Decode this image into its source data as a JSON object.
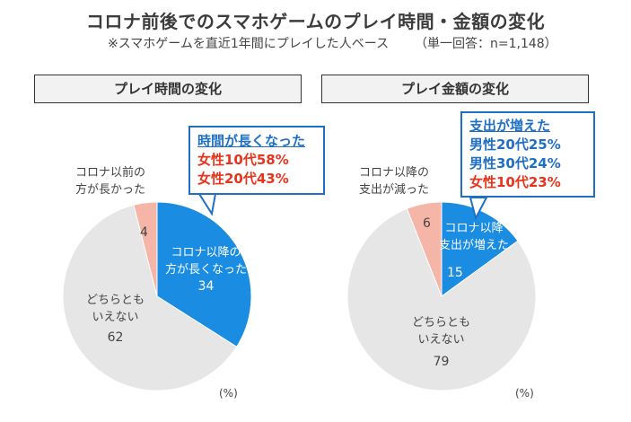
{
  "header": {
    "title": "コロナ前後でのスマホゲームのプレイ時間・金額の変化",
    "subtitle": "※スマホゲームを直近1年間にプレイした人ベース",
    "note": "（単一回答：n=1,148）"
  },
  "colors": {
    "increase": "#1a8ce2",
    "decrease": "#f5b5a7",
    "neutral": "#e6e6e6",
    "callout_blue": "#1f6fc5",
    "callout_red": "#e8341c"
  },
  "chart_data": [
    {
      "type": "pie",
      "title": "プレイ時間の変化",
      "slices": [
        {
          "label": "コロナ以降の方が長くなった",
          "value": 34
        },
        {
          "label": "どちらともいえない",
          "value": 62
        },
        {
          "label": "コロナ以前の方が長かった",
          "value": 4
        }
      ],
      "label_lines": {
        "increase": [
          "コロナ以降の",
          "方が長くなった"
        ],
        "neutral": [
          "どちらとも",
          "いえない"
        ],
        "decrease": [
          "コロナ以前の",
          "方が長かった"
        ]
      },
      "callout": {
        "heading": "時間が長くなった",
        "items": [
          {
            "text": "女性10代58%",
            "color": "red"
          },
          {
            "text": "女性20代43%",
            "color": "red"
          }
        ]
      },
      "unit": "(%)"
    },
    {
      "type": "pie",
      "title": "プレイ金額の変化",
      "slices": [
        {
          "label": "コロナ以降支出が増えた",
          "value": 15
        },
        {
          "label": "どちらともいえない",
          "value": 79
        },
        {
          "label": "コロナ以降支出が減った",
          "value": 6
        }
      ],
      "label_lines": {
        "increase": [
          "コロナ以降",
          "支出が増えた"
        ],
        "neutral": [
          "どちらとも",
          "いえない"
        ],
        "decrease": [
          "コロナ以降の",
          "支出が減った"
        ]
      },
      "callout": {
        "heading": "支出が増えた",
        "items": [
          {
            "text": "男性20代25%",
            "color": "blue"
          },
          {
            "text": "男性30代24%",
            "color": "blue"
          },
          {
            "text": "女性10代23%",
            "color": "red"
          }
        ]
      },
      "unit": "(%)"
    }
  ]
}
